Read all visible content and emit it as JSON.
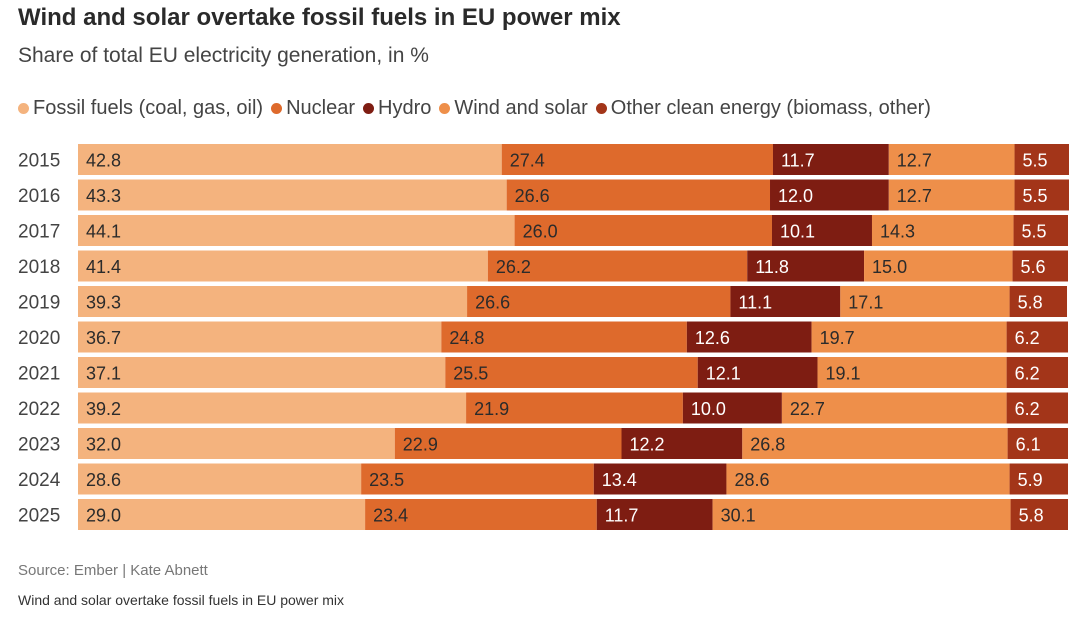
{
  "title": "Wind and solar overtake fossil fuels in EU power mix",
  "subtitle": "Share of total EU electricity generation, in %",
  "source": "Source: Ember | Kate Abnett",
  "footer": "Wind and solar overtake fossil fuels in EU power mix",
  "colors": {
    "fossil": "#F4B37E",
    "nuclear": "#DE6A2C",
    "hydro": "#7E1D12",
    "wind_solar": "#EE8F4A",
    "other": "#A33519",
    "label_dark": "#2b2b2b",
    "label_light": "#ffffff",
    "row_label": "#444444"
  },
  "chart_data": {
    "type": "bar",
    "orientation": "horizontal",
    "stacked": true,
    "xlim": [
      0,
      100
    ],
    "legend_position": "top",
    "categories": [
      "2015",
      "2016",
      "2017",
      "2018",
      "2019",
      "2020",
      "2021",
      "2022",
      "2023",
      "2024",
      "2025"
    ],
    "series": [
      {
        "name": "Fossil fuels (coal, gas, oil)",
        "key": "fossil",
        "values": [
          42.8,
          43.3,
          44.1,
          41.4,
          39.3,
          36.7,
          37.1,
          39.2,
          32.0,
          28.6,
          29.0
        ]
      },
      {
        "name": "Nuclear",
        "key": "nuclear",
        "values": [
          27.4,
          26.6,
          26.0,
          26.2,
          26.6,
          24.8,
          25.5,
          21.9,
          22.9,
          23.5,
          23.4
        ]
      },
      {
        "name": "Hydro",
        "key": "hydro",
        "values": [
          11.7,
          12.0,
          10.1,
          11.8,
          11.1,
          12.6,
          12.1,
          10.0,
          12.2,
          13.4,
          11.7
        ]
      },
      {
        "name": "Wind and solar",
        "key": "wind_solar",
        "values": [
          12.7,
          12.7,
          14.3,
          15.0,
          17.1,
          19.7,
          19.1,
          22.7,
          26.8,
          28.6,
          30.1
        ]
      },
      {
        "name": "Other clean energy (biomass, other)",
        "key": "other",
        "values": [
          5.5,
          5.5,
          5.5,
          5.6,
          5.8,
          6.2,
          6.2,
          6.2,
          6.1,
          5.9,
          5.8
        ]
      }
    ]
  }
}
